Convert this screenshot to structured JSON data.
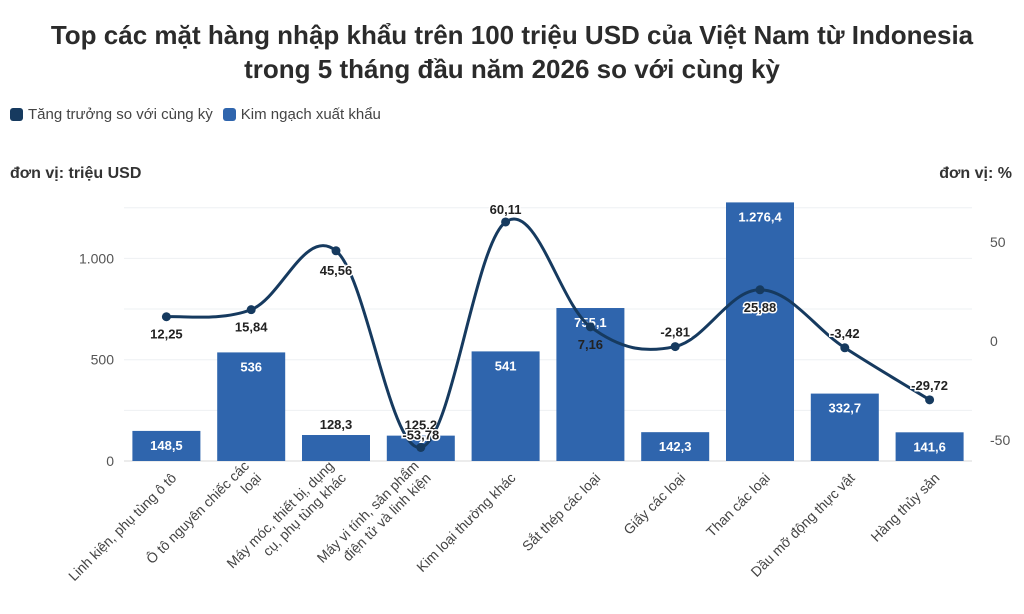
{
  "title_line1": "Top các mặt hàng nhập khẩu trên 100 triệu USD của Việt Nam từ Indonesia",
  "title_line2": "trong 5 tháng đầu năm 2026 so với cùng kỳ",
  "unit_left": "đơn vị: triệu USD",
  "unit_right": "đơn vị: %",
  "colors": {
    "bar": "#2f65ad",
    "line": "#163a5f"
  },
  "chart_data": {
    "type": "bar",
    "title": "Top các mặt hàng nhập khẩu trên 100 triệu USD của Việt Nam từ Indonesia trong 5 tháng đầu năm 2026 so với cùng kỳ",
    "categories": [
      "Linh kiện, phụ tùng ô tô",
      "Ô tô nguyên chiếc các loại",
      "Máy móc, thiết bị, dụng cụ, phụ tùng khác",
      "Máy vi tính, sản phẩm điện tử và linh kiện",
      "Kim loại thường khác",
      "Sắt thép các loại",
      "Giấy các loại",
      "Than các loại",
      "Dầu mỡ động thực vật",
      "Hàng thủy sản"
    ],
    "category_lines": [
      [
        "Linh kiện, phụ tùng ô tô"
      ],
      [
        "Ô tô nguyên chiếc các",
        "loại"
      ],
      [
        "Máy móc, thiết bị, dụng",
        "cụ, phụ tùng khác"
      ],
      [
        "Máy vi tính, sản phẩm",
        "điện tử và linh kiện"
      ],
      [
        "Kim loại thường khác"
      ],
      [
        "Sắt thép các loại"
      ],
      [
        "Giấy các loại"
      ],
      [
        "Than các loại"
      ],
      [
        "Dầu mỡ động thực vật"
      ],
      [
        "Hàng thủy sản"
      ]
    ],
    "series": [
      {
        "name": "Kim ngạch xuất khẩu",
        "type": "bar",
        "axis": "left",
        "values": [
          148.5,
          536,
          128.3,
          125.2,
          541,
          755.1,
          142.3,
          1276.4,
          332.7,
          141.6
        ],
        "labels": [
          "148,5",
          "536",
          "128,3",
          "125,2",
          "541",
          "755,1",
          "142,3",
          "1.276,4",
          "332,7",
          "141,6"
        ]
      },
      {
        "name": "Tăng trưởng so với cùng kỳ",
        "type": "line",
        "axis": "right",
        "values": [
          12.25,
          15.84,
          45.56,
          -53.78,
          60.11,
          7.16,
          -2.81,
          25.88,
          -3.42,
          -29.72
        ],
        "labels": [
          "12,25",
          "15,84",
          "45,56",
          "-53,78",
          "60,11",
          "7,16",
          "-2,81",
          "25,88",
          "-3,42",
          "-29,72"
        ]
      }
    ],
    "y_left": {
      "ticks": [
        0,
        500,
        1000
      ],
      "tick_labels": [
        "0",
        "500",
        "1.000"
      ]
    },
    "y_right": {
      "ticks": [
        -50,
        0,
        50
      ],
      "tick_labels": [
        "-50",
        "0",
        "50"
      ]
    },
    "legend_position": "top-left",
    "grid": true
  }
}
